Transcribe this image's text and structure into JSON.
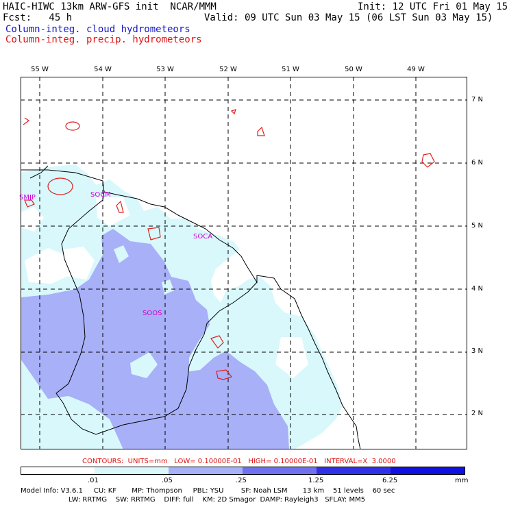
{
  "header": {
    "model_line": "HAIC-HIWC 13km ARW-GFS init  NCAR/MMM",
    "init_line": "Init: 12 UTC Fri 01 May 15",
    "fcst_line": "Fcst:   45 h",
    "valid_line": "Valid: 09 UTC Sun 03 May 15 (06 LST Sun 03 May 15)",
    "field1": "Column-integ. cloud hydrometeors",
    "field2": "Column-integ. precip. hydrometeors"
  },
  "map": {
    "lon_labels": [
      "55 W",
      "54 W",
      "53 W",
      "52 W",
      "51 W",
      "50 W",
      "49 W"
    ],
    "lat_labels": [
      "7 N",
      "6 N",
      "5 N",
      "4 N",
      "3 N",
      "2 N"
    ],
    "stations": [
      "SMJP",
      "SOCM",
      "SOCA",
      "SOOS"
    ],
    "colors": {
      "light": "#d8f8fc",
      "medium": "#a8b0f8",
      "border": "#000000",
      "precip": "#e02020"
    }
  },
  "contours_line": "CONTOURS:  UNITS=mm   LOW= 0.10000E-01   HIGH= 0.10000E-01   INTERVAL=X  3.0000",
  "colorbar": {
    "labels": [
      ".01",
      ".05",
      ".25",
      "1.25",
      "6.25"
    ],
    "unit": "mm",
    "colors": [
      "#ffffff",
      "#d8f8fc",
      "#a8b0f8",
      "#7070f0",
      "#3030e8",
      "#1010e0"
    ]
  },
  "model_info": {
    "line1": "Model Info: V3.6.1     CU: KF       MP: Thompson     PBL: YSU        SF: Noah LSM       13 km    51 levels    60 sec",
    "line2": "                      LW: RRTMG    SW: RRTMG    DIFF: full    KM: 2D Smagor  DAMP: Rayleigh3   SFLAY: MM5"
  }
}
